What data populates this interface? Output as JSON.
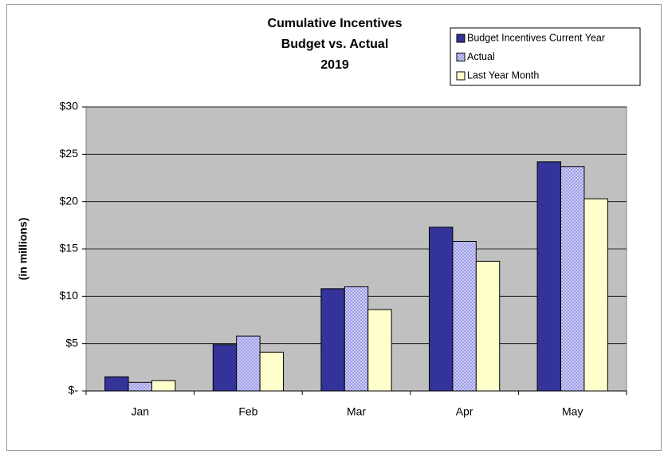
{
  "chart_data": {
    "type": "bar",
    "title": [
      "Cumulative Incentives",
      "Budget vs. Actual",
      "2019"
    ],
    "y_label": "(in millions)",
    "categories": [
      "Jan",
      "Feb",
      "Mar",
      "Apr",
      "May"
    ],
    "series": [
      {
        "name": "Budget Incentives Current Year",
        "color": "#333399",
        "values": [
          1.5,
          4.9,
          10.8,
          17.3,
          24.2
        ]
      },
      {
        "name": "Actual",
        "color": "#ccccff",
        "pattern": "dots",
        "values": [
          0.9,
          5.8,
          11.0,
          15.8,
          23.7
        ]
      },
      {
        "name": "Last Year Month",
        "color": "#ffffcc",
        "values": [
          1.1,
          4.1,
          8.6,
          13.7,
          20.3
        ]
      }
    ],
    "ylim": [
      0,
      30
    ],
    "yticks": [
      {
        "value": 0,
        "label": "$-"
      },
      {
        "value": 5,
        "label": "$5"
      },
      {
        "value": 10,
        "label": "$10"
      },
      {
        "value": 15,
        "label": "$15"
      },
      {
        "value": 20,
        "label": "$20"
      },
      {
        "value": 25,
        "label": "$25"
      },
      {
        "value": 30,
        "label": "$30"
      }
    ],
    "grid": true,
    "plot_background": "#c0c0c0",
    "legend": "top-right"
  }
}
